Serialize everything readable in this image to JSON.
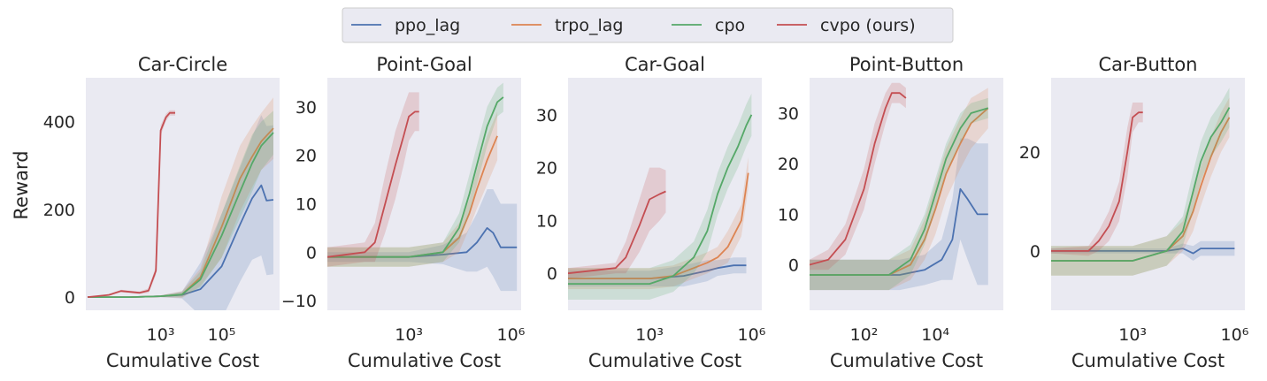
{
  "legend": {
    "entries": [
      {
        "label": "ppo_lag",
        "color": "#4c72b0"
      },
      {
        "label": "trpo_lag",
        "color": "#dd8452"
      },
      {
        "label": "cpo",
        "color": "#55a868"
      },
      {
        "label": "cvpo (ours)",
        "color": "#c44e52"
      }
    ],
    "placement": "top-center"
  },
  "chart_data": [
    {
      "type": "line",
      "title": "Car-Circle",
      "xlabel": "Cumulative Cost",
      "ylabel": "Reward",
      "xscale": "log",
      "xlim": [
        3.5,
        8000000
      ],
      "ylim": [
        -30,
        500
      ],
      "xticks": [
        {
          "label": "10³",
          "value": 1000
        },
        {
          "label": "10⁵",
          "value": 100000
        }
      ],
      "yticks": [
        0,
        200,
        400
      ],
      "series": [
        {
          "name": "ppo_lag",
          "x": [
            4,
            100,
            1000,
            5000,
            20000,
            100000,
            400000,
            1000000,
            2000000,
            3000000,
            5000000
          ],
          "y": [
            0,
            0,
            2,
            5,
            18,
            70,
            165,
            225,
            255,
            220,
            222
          ],
          "band": [
            0,
            0,
            2,
            8,
            60,
            120,
            130,
            140,
            160,
            170,
            170
          ]
        },
        {
          "name": "trpo_lag",
          "x": [
            4,
            100,
            1000,
            5000,
            20000,
            100000,
            400000,
            1000000,
            2000000,
            5000000
          ],
          "y": [
            0,
            0,
            2,
            6,
            45,
            160,
            270,
            320,
            355,
            385
          ],
          "band": [
            0,
            0,
            2,
            8,
            20,
            70,
            75,
            70,
            65,
            70
          ]
        },
        {
          "name": "cpo",
          "x": [
            4,
            100,
            1000,
            5000,
            20000,
            100000,
            400000,
            1000000,
            2000000,
            5000000
          ],
          "y": [
            0,
            0,
            2,
            6,
            40,
            140,
            240,
            305,
            345,
            375
          ],
          "band": [
            0,
            0,
            2,
            6,
            18,
            50,
            60,
            65,
            55,
            50
          ]
        },
        {
          "name": "cvpo (ours)",
          "x": [
            4,
            20,
            50,
            100,
            200,
            400,
            700,
            1000,
            1500,
            2000,
            3000
          ],
          "y": [
            0,
            5,
            14,
            12,
            10,
            15,
            60,
            380,
            410,
            420,
            420
          ],
          "band": [
            0,
            2,
            3,
            3,
            3,
            5,
            10,
            12,
            8,
            6,
            6
          ]
        }
      ]
    },
    {
      "type": "line",
      "title": "Point-Goal",
      "xlabel": "Cumulative Cost",
      "ylabel": "",
      "xscale": "log",
      "xlim": [
        4,
        2000000
      ],
      "ylim": [
        -12,
        36
      ],
      "xticks": [
        {
          "label": "10³",
          "value": 1000
        },
        {
          "label": "10⁶",
          "value": 1000000
        }
      ],
      "yticks": [
        -10,
        0,
        10,
        20,
        30
      ],
      "series": [
        {
          "name": "ppo_lag",
          "x": [
            4,
            1000,
            10000,
            50000,
            100000,
            200000,
            300000,
            500000,
            1000000,
            1500000
          ],
          "y": [
            -1,
            -1,
            -0.5,
            0,
            2,
            5,
            4,
            1,
            1,
            1
          ],
          "band": [
            1,
            1,
            2,
            4,
            6,
            8,
            9,
            9,
            9,
            9
          ]
        },
        {
          "name": "trpo_lag",
          "x": [
            4,
            1000,
            10000,
            30000,
            60000,
            100000,
            200000,
            400000
          ],
          "y": [
            -1,
            -1,
            0,
            3,
            8,
            13,
            19,
            24
          ],
          "band": [
            2,
            2,
            2,
            3,
            3,
            4,
            5,
            5
          ]
        },
        {
          "name": "cpo",
          "x": [
            4,
            1000,
            10000,
            30000,
            60000,
            100000,
            200000,
            400000,
            600000
          ],
          "y": [
            -1,
            -1,
            0,
            5,
            12,
            18,
            26,
            31,
            32
          ],
          "band": [
            2,
            2,
            2,
            3,
            4,
            4,
            4,
            3,
            3
          ]
        },
        {
          "name": "cvpo (ours)",
          "x": [
            4,
            50,
            100,
            200,
            400,
            700,
            1000,
            1500,
            2000
          ],
          "y": [
            -1,
            0,
            2,
            10,
            18,
            24,
            28,
            29,
            29
          ],
          "band": [
            2,
            2,
            4,
            6,
            7,
            6,
            5,
            4,
            4
          ]
        }
      ]
    },
    {
      "type": "line",
      "title": "Car-Goal",
      "xlabel": "Cumulative Cost",
      "ylabel": "",
      "xscale": "log",
      "xlim": [
        4,
        2000000
      ],
      "ylim": [
        -7,
        37
      ],
      "xticks": [
        {
          "label": "10³",
          "value": 1000
        },
        {
          "label": "10⁶",
          "value": 1000000
        }
      ],
      "yticks": [
        0,
        10,
        20,
        30
      ],
      "series": [
        {
          "name": "ppo_lag",
          "x": [
            4,
            1000,
            10000,
            50000,
            100000,
            300000,
            700000
          ],
          "y": [
            -1,
            -1,
            -0.5,
            0.5,
            1,
            1.5,
            1.5
          ],
          "band": [
            1.5,
            1.5,
            2,
            2,
            1.5,
            1.5,
            1.5
          ]
        },
        {
          "name": "trpo_lag",
          "x": [
            4,
            1000,
            5000,
            20000,
            50000,
            100000,
            200000,
            500000,
            800000
          ],
          "y": [
            -1,
            -1,
            -0.5,
            1,
            2,
            3,
            5,
            10,
            19
          ],
          "band": [
            2,
            2,
            2,
            2,
            2,
            2,
            3,
            3,
            3
          ]
        },
        {
          "name": "cpo",
          "x": [
            4,
            1000,
            5000,
            20000,
            50000,
            100000,
            200000,
            400000,
            700000,
            1000000
          ],
          "y": [
            -2,
            -2,
            -0.5,
            3,
            8,
            15,
            20,
            24,
            28,
            30
          ],
          "band": [
            3,
            3,
            3,
            3,
            4,
            4,
            4,
            4,
            4,
            4
          ]
        },
        {
          "name": "cvpo (ours)",
          "x": [
            4,
            100,
            200,
            500,
            1000,
            2000,
            3000
          ],
          "y": [
            0,
            1,
            3,
            9,
            14,
            15,
            15.5
          ],
          "band": [
            1,
            1,
            3,
            5,
            6,
            5,
            4
          ]
        }
      ]
    },
    {
      "type": "line",
      "title": "Point-Button",
      "xlabel": "Cumulative Cost",
      "ylabel": "",
      "xscale": "log",
      "xlim": [
        3,
        800000
      ],
      "ylim": [
        -9,
        37
      ],
      "xticks": [
        {
          "label": "10²",
          "value": 100
        },
        {
          "label": "10⁴",
          "value": 10000
        }
      ],
      "yticks": [
        0,
        10,
        20,
        30
      ],
      "series": [
        {
          "name": "ppo_lag",
          "x": [
            3,
            1000,
            5000,
            15000,
            30000,
            50000,
            80000,
            150000,
            300000
          ],
          "y": [
            -2,
            -2,
            -1,
            1,
            5,
            15,
            13,
            10,
            10
          ],
          "band": [
            3,
            3,
            3,
            4,
            8,
            10,
            12,
            14,
            14
          ]
        },
        {
          "name": "trpo_lag",
          "x": [
            3,
            500,
            2000,
            5000,
            10000,
            20000,
            50000,
            100000,
            300000
          ],
          "y": [
            -2,
            -2,
            0,
            5,
            11,
            18,
            24,
            28,
            31
          ],
          "band": [
            3,
            3,
            3,
            4,
            5,
            5,
            5,
            5,
            4
          ]
        },
        {
          "name": "cpo",
          "x": [
            3,
            500,
            2000,
            5000,
            10000,
            20000,
            50000,
            100000,
            300000
          ],
          "y": [
            -2,
            -2,
            1,
            7,
            14,
            21,
            27,
            30,
            31
          ],
          "band": [
            3,
            3,
            3,
            3,
            3,
            3,
            3,
            2,
            2
          ]
        },
        {
          "name": "cvpo (ours)",
          "x": [
            3,
            10,
            30,
            100,
            200,
            400,
            600,
            1000,
            1500
          ],
          "y": [
            0,
            1,
            5,
            15,
            24,
            31,
            34,
            34,
            33
          ],
          "band": [
            1,
            2,
            3,
            4,
            4,
            3,
            2,
            2,
            2
          ]
        }
      ]
    },
    {
      "type": "line",
      "title": "Car-Button",
      "xlabel": "Cumulative Cost",
      "ylabel": "",
      "xscale": "log",
      "xlim": [
        4,
        2000000
      ],
      "ylim": [
        -12,
        35
      ],
      "xticks": [
        {
          "label": "10³",
          "value": 1000
        },
        {
          "label": "10⁶",
          "value": 1000000
        }
      ],
      "yticks": [
        0,
        20
      ],
      "series": [
        {
          "name": "ppo_lag",
          "x": [
            4,
            1000,
            10000,
            30000,
            60000,
            100000,
            300000,
            1000000
          ],
          "y": [
            0,
            0,
            0,
            0.5,
            -0.5,
            0.5,
            0.5,
            0.5
          ],
          "band": [
            0.5,
            0.5,
            0.5,
            1,
            1.5,
            1.5,
            1.5,
            1.5
          ]
        },
        {
          "name": "trpo_lag",
          "x": [
            4,
            1000,
            10000,
            30000,
            60000,
            100000,
            200000,
            400000,
            700000
          ],
          "y": [
            -2,
            -2,
            0,
            3,
            8,
            13,
            19,
            24,
            27
          ],
          "band": [
            3,
            3,
            3,
            3,
            4,
            4,
            4,
            4,
            4
          ]
        },
        {
          "name": "cpo",
          "x": [
            4,
            1000,
            10000,
            30000,
            60000,
            100000,
            200000,
            400000,
            700000
          ],
          "y": [
            -2,
            -2,
            0,
            4,
            12,
            18,
            23,
            26,
            29
          ],
          "band": [
            3,
            3,
            3,
            3,
            4,
            4,
            4,
            4,
            4
          ]
        },
        {
          "name": "cvpo (ours)",
          "x": [
            4,
            50,
            100,
            200,
            400,
            700,
            1000,
            1500,
            2000
          ],
          "y": [
            0,
            0,
            2,
            5,
            10,
            20,
            27,
            28,
            28
          ],
          "band": [
            0.5,
            1,
            2,
            3,
            4,
            5,
            3,
            2,
            2
          ]
        }
      ]
    }
  ]
}
